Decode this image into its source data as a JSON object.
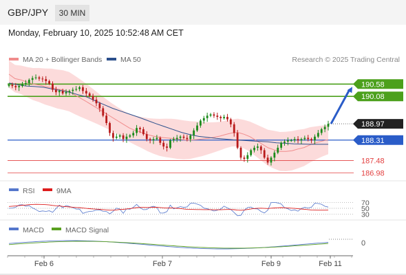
{
  "header": {
    "symbol": "GBP/JPY",
    "interval": "30 MIN",
    "datetime": "Monday, February 10, 2025 10:52:48 AM CET"
  },
  "legend": {
    "ma20_label": "MA 20 + Bollinger Bands",
    "ma50_label": "MA 50",
    "credit": "Research © 2025 Trading Central",
    "rsi_label": "RSI",
    "rsi_ma_label": "9MA",
    "macd_label": "MACD",
    "macd_signal_label": "MACD Signal"
  },
  "colors": {
    "up": "#1a8a1a",
    "down": "#b81a1a",
    "ma20": "#f08c8c",
    "ma50": "#2b4f8c",
    "band_fill": "#fbd5d5",
    "target_green": "#4ca01c",
    "support_blue": "#2a5cc8",
    "red_level": "#e34040",
    "price_tag": "#222222",
    "rsi_line": "#5577cc",
    "rsi_ma": "#dd1c1c",
    "macd_line": "#5577cc",
    "macd_signal": "#5aa020"
  },
  "chart_data": {
    "type": "candlestick",
    "instrument": "GBP/JPY",
    "timeframe": "30 MIN",
    "ylim": [
      186.8,
      191.2
    ],
    "x_ticks": [
      "Feb 6",
      "Feb 7",
      "Feb 9",
      "Feb 11"
    ],
    "levels": [
      {
        "value": 190.58,
        "label": "190.58",
        "kind": "target"
      },
      {
        "value": 190.08,
        "label": "190.08",
        "kind": "target"
      },
      {
        "value": 188.97,
        "label": "188.97",
        "kind": "last"
      },
      {
        "value": 188.31,
        "label": "188.31",
        "kind": "pivot"
      },
      {
        "value": 187.48,
        "label": "187.48",
        "kind": "support"
      },
      {
        "value": 186.98,
        "label": "186.98",
        "kind": "support"
      }
    ],
    "closes": [
      190.55,
      190.5,
      190.45,
      190.5,
      190.58,
      190.62,
      190.75,
      190.82,
      190.85,
      190.8,
      190.78,
      190.7,
      190.6,
      190.35,
      190.25,
      190.3,
      190.2,
      190.25,
      190.3,
      190.35,
      190.38,
      190.45,
      190.3,
      190.2,
      190.1,
      189.95,
      189.8,
      189.6,
      189.3,
      189.0,
      188.6,
      188.4,
      188.45,
      188.5,
      188.35,
      188.45,
      188.5,
      188.6,
      188.8,
      188.75,
      188.55,
      188.35,
      188.3,
      188.35,
      188.4,
      188.2,
      188.05,
      188.0,
      188.3,
      188.35,
      188.4,
      188.45,
      188.4,
      188.35,
      188.5,
      188.7,
      188.9,
      189.1,
      189.2,
      189.3,
      189.35,
      189.3,
      189.25,
      189.2,
      189.25,
      189.15,
      188.95,
      188.6,
      188.0,
      187.6,
      187.55,
      187.7,
      187.9,
      188.0,
      188.05,
      187.9,
      187.6,
      187.4,
      187.6,
      187.8,
      188.0,
      188.2,
      188.25,
      188.3,
      188.3,
      188.35,
      188.3,
      188.35,
      188.4,
      188.35,
      188.3,
      188.45,
      188.6,
      188.75,
      188.85,
      188.97
    ],
    "ma20_values": [
      190.98,
      190.8,
      190.75,
      190.66,
      190.58,
      190.54,
      190.48,
      190.44,
      190.38,
      190.34,
      190.27,
      190.13,
      189.99,
      189.85,
      189.7,
      189.55,
      189.4,
      189.25,
      189.1,
      188.95,
      188.8,
      188.7,
      188.62,
      188.53,
      188.47,
      188.42,
      188.4,
      188.38,
      188.35,
      188.32,
      188.31,
      188.33,
      188.35,
      188.38,
      188.42,
      188.47,
      188.54,
      188.6,
      188.62,
      188.55,
      188.45,
      188.3,
      188.15,
      188.0,
      187.92,
      187.85,
      187.85,
      187.88,
      187.95,
      188.01,
      188.12,
      188.2,
      188.27,
      188.33
    ],
    "ma50_values": [
      190.62,
      190.55,
      190.5,
      190.48,
      190.45,
      190.38,
      190.32,
      190.25,
      190.15,
      190.06,
      189.9,
      189.75,
      189.6,
      189.48,
      189.36,
      189.24,
      189.11,
      188.98,
      188.86,
      188.74,
      188.62,
      188.53,
      188.46,
      188.42,
      188.38,
      188.35,
      188.32,
      188.3,
      188.28,
      188.26,
      188.24,
      188.2,
      188.18,
      188.16,
      188.15,
      188.14,
      188.14,
      188.14
    ],
    "rsi": {
      "levels": [
        70,
        50,
        30
      ]
    },
    "macd": {
      "levels": [
        0
      ]
    }
  }
}
